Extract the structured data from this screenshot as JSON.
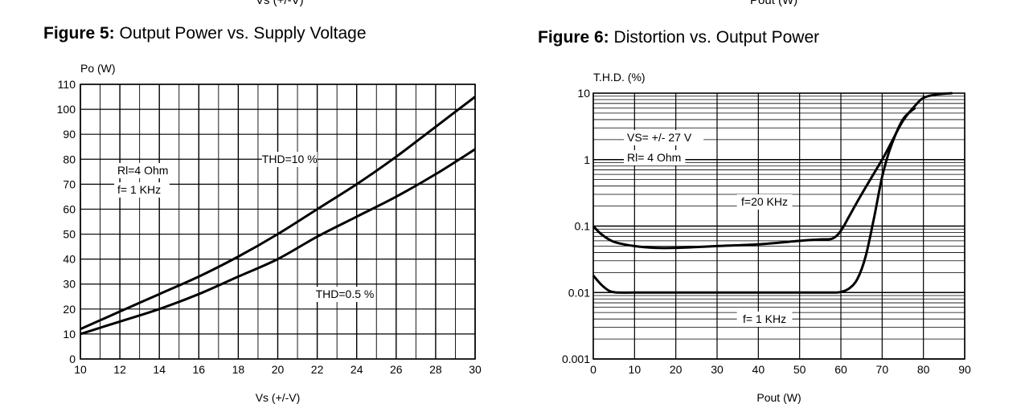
{
  "top_cutoff_left": "Vs (+/-V)",
  "top_cutoff_right": "Pout (W)",
  "chart_data": [
    {
      "type": "line",
      "title_prefix": "Figure 5:",
      "title": "Output Power vs. Supply Voltage",
      "xlabel": "Vs (+/-V)",
      "ylabel": "Po (W)",
      "xlim": [
        10,
        30
      ],
      "ylim": [
        0,
        110
      ],
      "xticks": [
        "10",
        "12",
        "14",
        "16",
        "18",
        "20",
        "22",
        "24",
        "26",
        "28",
        "30"
      ],
      "yticks": [
        "0",
        "10",
        "20",
        "30",
        "40",
        "50",
        "60",
        "70",
        "80",
        "90",
        "100",
        "110"
      ],
      "grid": true,
      "annotations": [
        "Rl=4 Ohm",
        "f= 1 KHz"
      ],
      "series": [
        {
          "name": "THD=10 %",
          "x": [
            10,
            12,
            14,
            16,
            18,
            20,
            22,
            24,
            26,
            28,
            30
          ],
          "y": [
            12,
            19,
            26,
            33,
            41,
            50,
            60,
            70,
            81,
            93,
            105
          ]
        },
        {
          "name": "THD=0.5 %",
          "x": [
            10,
            12,
            14,
            16,
            18,
            20,
            22,
            24,
            26,
            28,
            30
          ],
          "y": [
            10,
            15,
            20,
            26,
            33,
            40,
            49,
            57,
            65,
            74,
            84
          ]
        }
      ]
    },
    {
      "type": "line",
      "title_prefix": "Figure 6:",
      "title": "Distortion vs. Output Power",
      "xlabel": "Pout (W)",
      "ylabel": "T.H.D. (%)",
      "xscale": "linear",
      "yscale": "log",
      "xlim": [
        0,
        90
      ],
      "ylim": [
        0.001,
        10
      ],
      "xticks": [
        "0",
        "10",
        "20",
        "30",
        "40",
        "50",
        "60",
        "70",
        "80",
        "90"
      ],
      "yticks": [
        "0.001",
        "0.01",
        "0.1",
        "1",
        "10"
      ],
      "grid": true,
      "annotations": [
        "VS= +/- 27 V",
        "Rl= 4 Ohm"
      ],
      "series": [
        {
          "name": "f=20 KHz",
          "x": [
            0,
            2,
            5,
            10,
            15,
            20,
            30,
            40,
            50,
            55,
            58,
            60,
            62,
            65,
            70,
            72,
            75,
            78,
            80,
            83,
            87
          ],
          "y": [
            0.1,
            0.075,
            0.058,
            0.05,
            0.047,
            0.047,
            0.05,
            0.053,
            0.06,
            0.063,
            0.065,
            0.085,
            0.14,
            0.3,
            1.0,
            1.7,
            3.8,
            6.5,
            8.5,
            9.5,
            10
          ]
        },
        {
          "name": "f= 1 KHz",
          "x": [
            0,
            2,
            4,
            6,
            10,
            20,
            30,
            40,
            50,
            58,
            60,
            62,
            64,
            66,
            68,
            70,
            72,
            75,
            78
          ],
          "y": [
            0.018,
            0.013,
            0.0105,
            0.01,
            0.01,
            0.01,
            0.01,
            0.01,
            0.01,
            0.01,
            0.0102,
            0.0115,
            0.016,
            0.035,
            0.13,
            0.55,
            1.5,
            4.0,
            6.0
          ]
        }
      ]
    }
  ]
}
